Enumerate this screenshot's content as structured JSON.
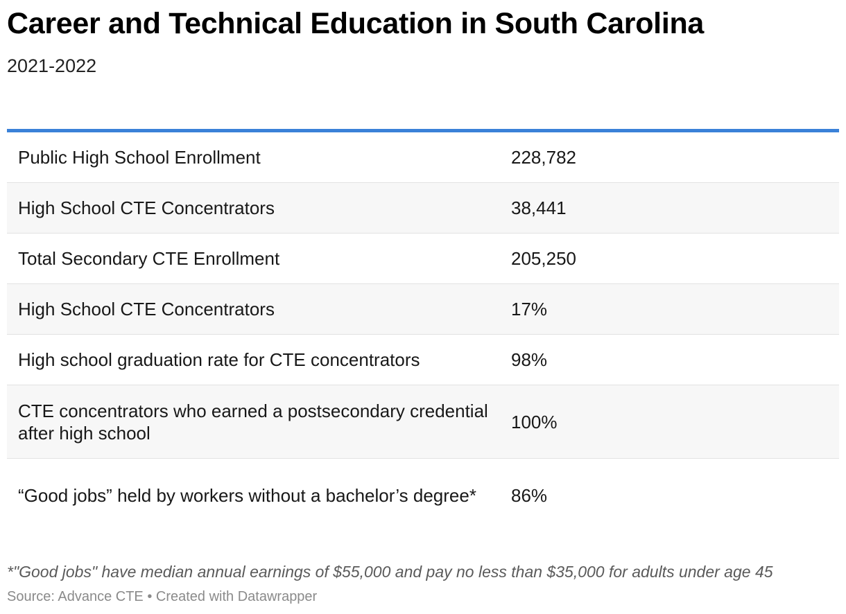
{
  "chart_data": {
    "type": "table",
    "title": "Career and Technical Education in South Carolina",
    "subtitle": "2021-2022",
    "rows": [
      {
        "label": "Public High School Enrollment",
        "value": "228,782"
      },
      {
        "label": "High School CTE Concentrators",
        "value": "38,441"
      },
      {
        "label": "Total Secondary CTE Enrollment",
        "value": "205,250"
      },
      {
        "label": "High School CTE Concentrators",
        "value": "17%"
      },
      {
        "label": "High school graduation rate for CTE concentrators",
        "value": "98%"
      },
      {
        "label": "CTE concentrators who earned a postsecondary credential after high school",
        "value": "100%"
      },
      {
        "label": "“Good jobs” held by workers without a bachelor’s degree*",
        "value": "86%"
      }
    ],
    "footnote": "*\"Good jobs\" have median annual earnings of $55,000 and pay no less than $35,000 for adults under age 45",
    "source": "Source: Advance CTE • Created with Datawrapper",
    "accent_color": "#3a81d8"
  }
}
